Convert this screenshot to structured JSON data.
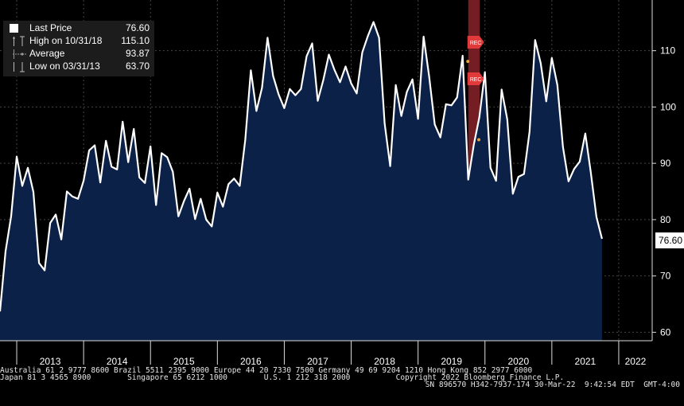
{
  "legend": {
    "last_price": {
      "label": "Last Price",
      "value": "76.60"
    },
    "high": {
      "label": "High on 10/31/18",
      "value": "115.10"
    },
    "average": {
      "label": "Average",
      "value": "93.87"
    },
    "low": {
      "label": "Low on 03/31/13",
      "value": "63.70"
    }
  },
  "last_tag": "76.60",
  "footer": {
    "line1": "Australia 61 2 9777 8600 Brazil 5511 2395 9000 Europe 44 20 7330 7500 Germany 49 69 9204 1210 Hong Kong 852 2977 6000",
    "line2": "Japan 81 3 4565 8900        Singapore 65 6212 1000        U.S. 1 212 318 2000          Copyright 2022 Bloomberg Finance L.P.",
    "line3": "SN 896570 H342-7937-174 30-Mar-22  9:42:54 EDT  GMT-4:00"
  },
  "colors": {
    "area": "#0b2148",
    "line": "#ffffff",
    "recession": "#7a1f24",
    "marker": "#e23a3a"
  },
  "chart_data": {
    "type": "area",
    "title": "",
    "xlabel": "",
    "ylabel": "",
    "ylim": [
      58.5,
      119
    ],
    "yticks": [
      60,
      70,
      80,
      90,
      100,
      110
    ],
    "xticks": [
      {
        "label": "2013",
        "t": 2013.0
      },
      {
        "label": "2014",
        "t": 2014.0
      },
      {
        "label": "2015",
        "t": 2015.0
      },
      {
        "label": "2016",
        "t": 2016.0
      },
      {
        "label": "2017",
        "t": 2017.0
      },
      {
        "label": "2018",
        "t": 2018.0
      },
      {
        "label": "2019",
        "t": 2019.0
      },
      {
        "label": "2020",
        "t": 2020.0
      },
      {
        "label": "2021",
        "t": 2021.0
      },
      {
        "label": "2022",
        "t": 2022.0
      }
    ],
    "xlim": [
      2012.75,
      2022.5
    ],
    "series": [
      {
        "name": "Last Price",
        "start": 2012.75,
        "step": 0.08333,
        "values": [
          63.7,
          74.4,
          80.6,
          91.2,
          86.0,
          89.2,
          84.9,
          72.3,
          71.0,
          79.4,
          80.9,
          76.5,
          85.0,
          84.1,
          83.7,
          86.9,
          92.3,
          93.2,
          86.6,
          94.0,
          89.4,
          88.9,
          97.4,
          90.2,
          96.1,
          87.5,
          86.5,
          93.0,
          82.6,
          91.8,
          91.1,
          88.5,
          80.6,
          83.3,
          85.5,
          80.1,
          83.7,
          80.0,
          78.8,
          84.8,
          82.3,
          86.3,
          87.3,
          86.0,
          94.2,
          106.5,
          99.3,
          103.4,
          112.3,
          105.5,
          102.2,
          99.8,
          103.2,
          102.1,
          103.2,
          109.0,
          111.3,
          101.1,
          104.8,
          109.3,
          106.6,
          104.4,
          107.2,
          104.2,
          102.4,
          109.7,
          112.6,
          115.1,
          112.3,
          97.1,
          89.5,
          103.9,
          98.4,
          102.7,
          104.9,
          97.9,
          112.5,
          105.4,
          96.9,
          94.6,
          100.5,
          100.3,
          101.7,
          109.1,
          87.1,
          93.3,
          98.2,
          106.2,
          89.2,
          86.9,
          103.1,
          97.8,
          84.6,
          87.6,
          88.1,
          95.6,
          111.9,
          107.8,
          101.0,
          108.7,
          103.9,
          92.9,
          86.8,
          89.0,
          90.3,
          95.3,
          88.3,
          80.5,
          76.6
        ]
      }
    ],
    "recession": {
      "label": "REC",
      "start": 2019.75,
      "end": 2019.92
    },
    "rec_markers": [
      {
        "label": "REC",
        "t": 2019.75,
        "y": 111.5
      },
      {
        "label": "REC",
        "t": 2019.75,
        "y": 105.0
      }
    ],
    "grid": true,
    "legend_position": "top-left"
  }
}
